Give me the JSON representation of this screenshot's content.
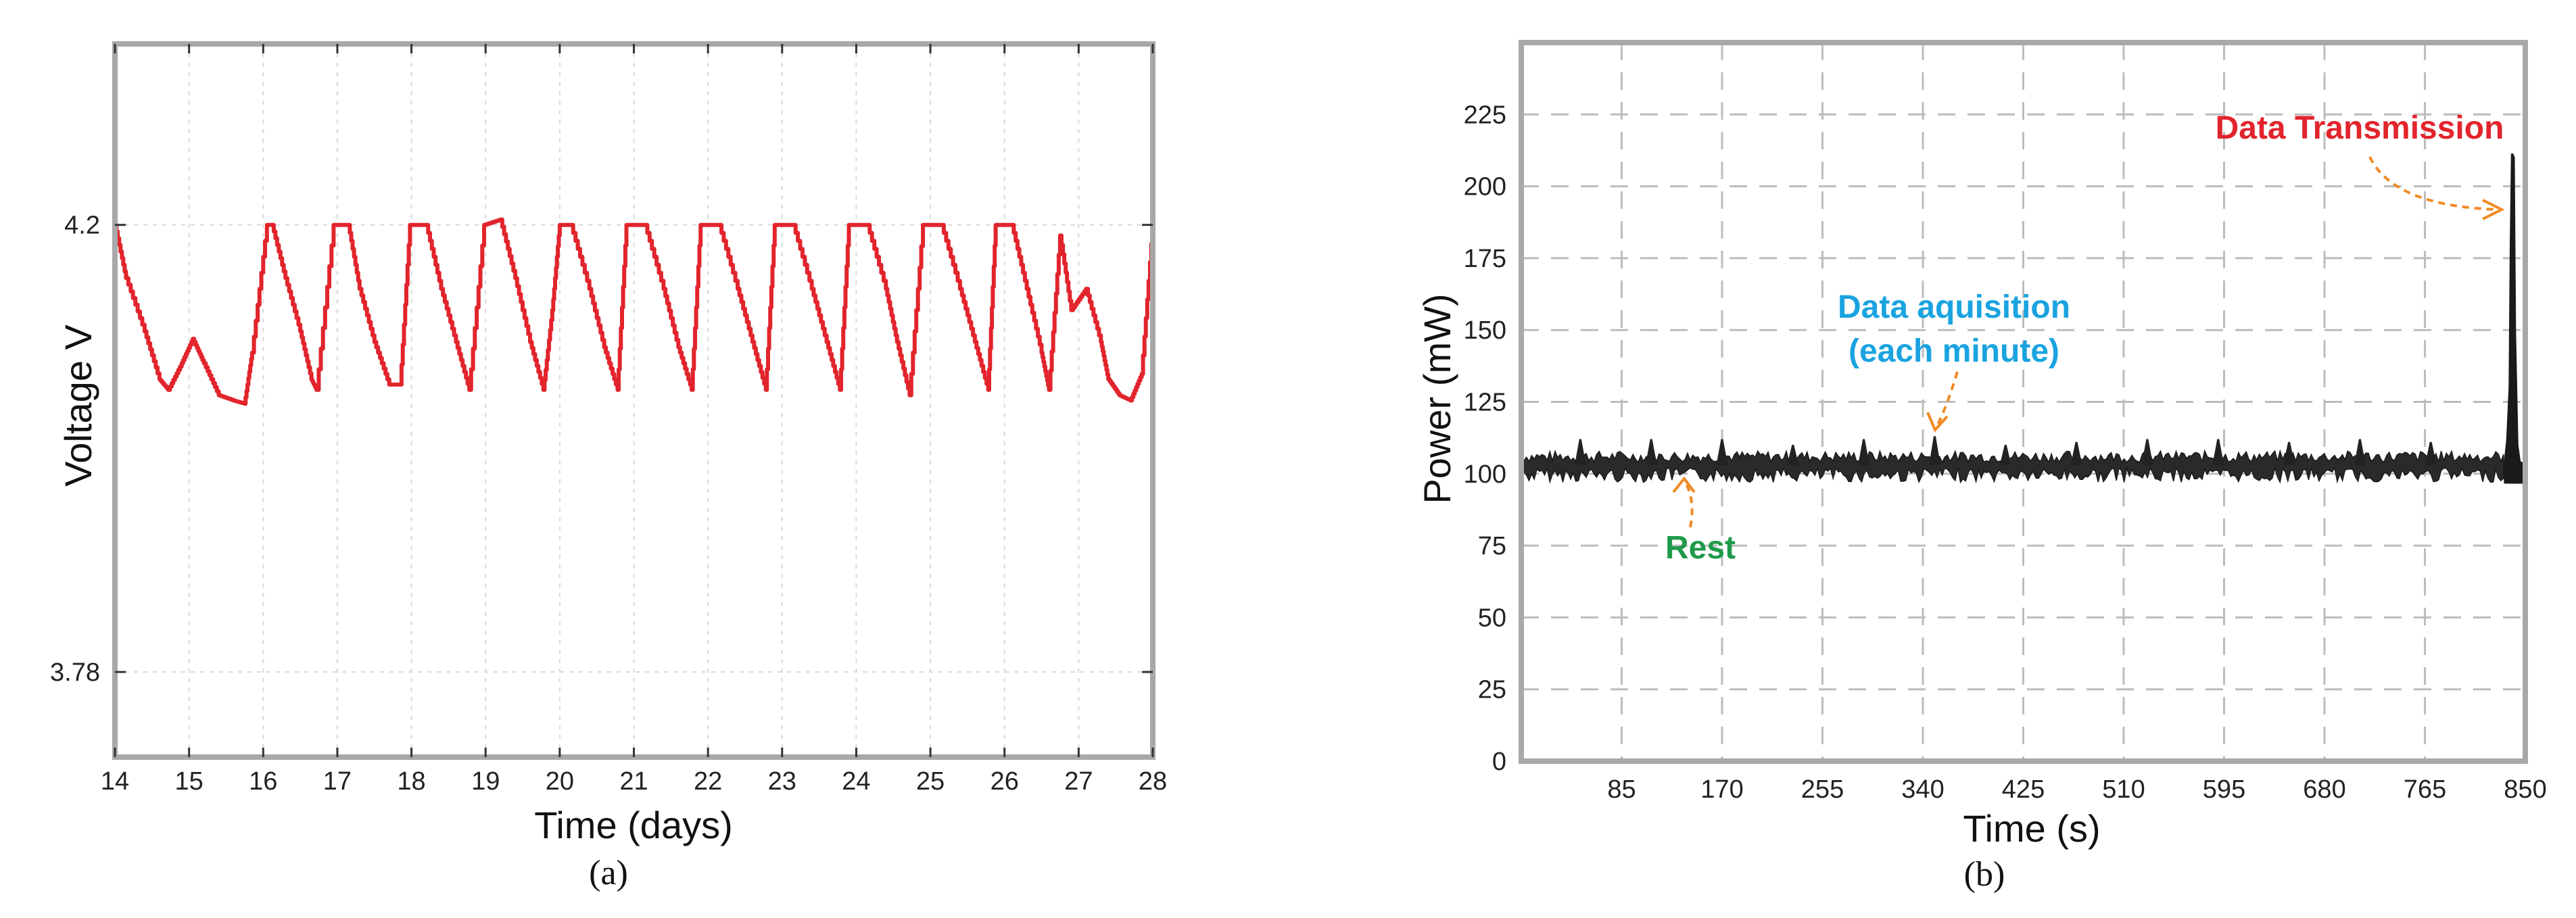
{
  "chart_data": [
    {
      "type": "line",
      "title": "",
      "xlabel": "Time (days)",
      "ylabel": "Voltage V",
      "panel_label": "(a)",
      "xlim": [
        14,
        28
      ],
      "ylim": [
        3.7,
        4.37
      ],
      "x_ticks": [
        14,
        15,
        16,
        17,
        18,
        19,
        20,
        21,
        22,
        23,
        24,
        25,
        26,
        27,
        28
      ],
      "y_ticks": [
        3.78,
        4.2
      ],
      "y_tick_labels": [
        "3.78",
        "4.2"
      ],
      "grid": true,
      "color": "#e2242c",
      "series": [
        {
          "x": [
            14.0,
            14.15,
            14.4,
            14.6,
            14.72,
            14.9,
            15.05,
            15.2,
            15.4,
            15.6,
            15.75,
            15.85,
            16.05,
            16.12,
            16.3,
            16.5,
            16.65,
            16.72,
            16.95,
            17.15,
            17.3,
            17.5,
            17.7,
            17.85,
            17.98,
            18.2,
            18.4,
            18.6,
            18.78,
            18.98,
            19.2,
            19.4,
            19.6,
            19.78,
            19.9,
            20.0,
            20.15,
            20.4,
            20.6,
            20.78,
            20.9,
            21.15,
            21.4,
            21.6,
            21.78,
            21.9,
            22.15,
            22.4,
            22.6,
            22.78,
            22.9,
            23.15,
            23.4,
            23.6,
            23.78,
            23.9,
            24.15,
            24.4,
            24.55,
            24.72,
            24.9,
            25.15,
            25.4,
            25.6,
            25.78,
            25.88,
            26.1,
            26.3,
            26.5,
            26.6,
            26.75,
            26.9,
            27.1,
            27.3,
            27.4,
            27.55,
            27.7,
            27.85,
            28.0
          ],
          "y": [
            4.2,
            4.15,
            4.1,
            4.055,
            4.045,
            4.07,
            4.093,
            4.07,
            4.04,
            4.035,
            4.032,
            4.08,
            4.2,
            4.2,
            4.15,
            4.1,
            4.055,
            4.045,
            4.2,
            4.2,
            4.14,
            4.09,
            4.05,
            4.05,
            4.2,
            4.2,
            4.14,
            4.09,
            4.045,
            4.2,
            4.205,
            4.15,
            4.09,
            4.045,
            4.12,
            4.2,
            4.2,
            4.14,
            4.085,
            4.045,
            4.2,
            4.2,
            4.14,
            4.085,
            4.045,
            4.2,
            4.2,
            4.14,
            4.09,
            4.045,
            4.2,
            4.2,
            4.14,
            4.09,
            4.045,
            4.2,
            4.2,
            4.14,
            4.09,
            4.04,
            4.2,
            4.2,
            4.14,
            4.09,
            4.045,
            4.2,
            4.2,
            4.14,
            4.08,
            4.045,
            4.19,
            4.12,
            4.14,
            4.09,
            4.055,
            4.04,
            4.035,
            4.06,
            4.2
          ]
        }
      ]
    },
    {
      "type": "line",
      "title": "",
      "xlabel": "Time (s)",
      "ylabel": "Power (mW)",
      "panel_label": "(b)",
      "xlim": [
        0,
        850
      ],
      "ylim": [
        0,
        250
      ],
      "x_ticks": [
        85,
        170,
        255,
        340,
        425,
        510,
        595,
        680,
        765,
        850
      ],
      "y_ticks": [
        0,
        25,
        50,
        75,
        100,
        125,
        150,
        175,
        200,
        225
      ],
      "grid": true,
      "color": "#222222",
      "baseline": 103,
      "noise_band": [
        97,
        108
      ],
      "spike_times": [
        50,
        110,
        170,
        230,
        290,
        350,
        410,
        470,
        530,
        590,
        650,
        710,
        770
      ],
      "spike_values": [
        112,
        112,
        112,
        110,
        112,
        113,
        110,
        111,
        112,
        112,
        111,
        112,
        111
      ],
      "series": [
        {
          "x": [
            833,
            835,
            837,
            838,
            839,
            840,
            841,
            843,
            845,
            850
          ],
          "y": [
            104,
            112,
            130,
            180,
            211,
            210,
            150,
            110,
            104,
            103
          ]
        }
      ],
      "annotations": [
        {
          "text": "Data Transmission",
          "color": "#e2242c"
        },
        {
          "text": "Data aquisition",
          "color": "#1aa3e0"
        },
        {
          "text": "(each minute)",
          "color": "#1aa3e0"
        },
        {
          "text": "Rest",
          "color": "#1f9a4a"
        }
      ],
      "arrow_color": "#f08a24"
    }
  ]
}
